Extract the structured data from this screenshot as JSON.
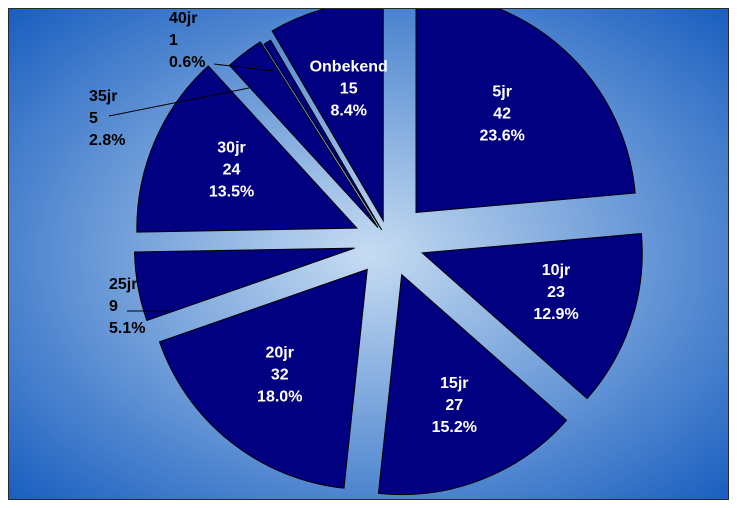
{
  "chart_data": {
    "type": "pie",
    "exploded": true,
    "slices": [
      {
        "label": "5jr",
        "count": "42",
        "percent": "23.6%",
        "value": 42
      },
      {
        "label": "10jr",
        "count": "23",
        "percent": "12.9%",
        "value": 23
      },
      {
        "label": "15jr",
        "count": "27",
        "percent": "15.2%",
        "value": 27
      },
      {
        "label": "20jr",
        "count": "32",
        "percent": "18.0%",
        "value": 32
      },
      {
        "label": "25jr",
        "count": "9",
        "percent": "5.1%",
        "value": 9
      },
      {
        "label": "30jr",
        "count": "24",
        "percent": "13.5%",
        "value": 24
      },
      {
        "label": "35jr",
        "count": "5",
        "percent": "2.8%",
        "value": 5
      },
      {
        "label": "40jr",
        "count": "1",
        "percent": "0.6%",
        "value": 1
      },
      {
        "label": "Onbekend",
        "count": "15",
        "percent": "8.4%",
        "value": 15
      }
    ],
    "colors": {
      "slice_fill": "#000080",
      "slice_stroke": "#000000",
      "label_inside": "#ffffff",
      "label_outside": "#000000",
      "background_center": "#c6dcf2",
      "background_edge": "#1a5fc0"
    },
    "legend": "none"
  }
}
